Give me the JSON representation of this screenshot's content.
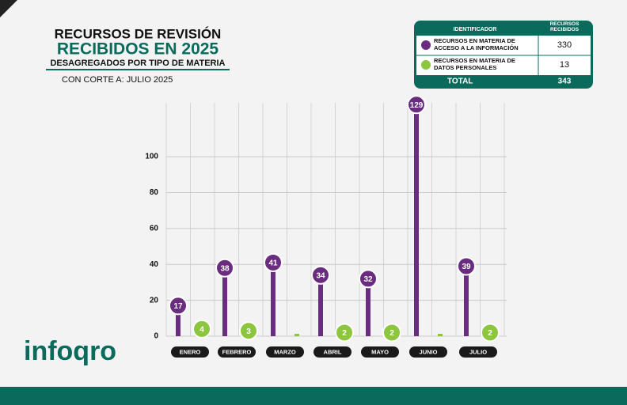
{
  "chart_data": {
    "type": "lollipop",
    "title": "RECURSOS DE REVISIÓN",
    "title_line2": "RECIBIDOS EN 2025",
    "subtitle": "DESAGREGADOS POR TIPO DE MATERIA",
    "cutoff": "CON CORTE A: JULIO 2025",
    "categories": [
      "ENERO",
      "FEBRERO",
      "MARZO",
      "ABRIL",
      "MAYO",
      "JUNIO",
      "JULIO"
    ],
    "series": [
      {
        "name": "RECURSOS EN MATERIA DE ACCESO A LA INFORMACIÓN",
        "color": "#6a2c7e",
        "values": [
          17,
          38,
          41,
          34,
          32,
          129,
          39
        ],
        "total": 330
      },
      {
        "name": "RECURSOS EN MATERIA DE DATOS PERSONALES",
        "color": "#8cc63f",
        "values": [
          4,
          3,
          0,
          2,
          2,
          0,
          2
        ],
        "total": 13
      }
    ],
    "table_header": [
      "IDENTIFICADOR",
      "RECURSOS RECIBIDOS"
    ],
    "total_label": "TOTAL",
    "total": 343,
    "ylim": [
      0,
      130
    ],
    "yticks": [
      0,
      20,
      40,
      60,
      80,
      100
    ],
    "grid": true,
    "logo": "infoqro"
  }
}
